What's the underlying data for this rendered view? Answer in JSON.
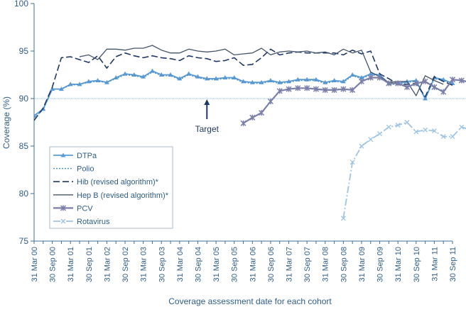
{
  "chart_data": {
    "type": "line",
    "xlabel": "Coverage assessment date for each cohort",
    "ylabel": "Coverage (%)",
    "ylim": [
      75,
      100
    ],
    "y_ticks": [
      "75",
      "80",
      "85",
      "90",
      "95",
      "100"
    ],
    "x_tick_labels": [
      "31 Mar 00",
      "30 Sep 00",
      "31 Mar 01",
      "30 Sep 01",
      "31 Mar 02",
      "30 Sep 02",
      "31 Mar 03",
      "30 Sep 03",
      "31 Mar 04",
      "30 Sep 04",
      "31 Mar 05",
      "30 Sep 05",
      "31 Mar 06",
      "30 Sep 06",
      "31 Mar 07",
      "30 Sep 07",
      "31 Mar 08",
      "30 Sep 08",
      "31 Mar 09",
      "30 Sep 09",
      "31 Mar 10",
      "30 Sep 10",
      "31 Mar 11",
      "30 Sep 11"
    ],
    "points_per_year": 4,
    "target": {
      "value": 90,
      "label": "Target"
    },
    "legend_position": "bottom-left",
    "colors": {
      "axis": "#3d6f97",
      "text": "#2f5d86",
      "DTPa": "#5b9bd5",
      "Polio": "#4a90c9",
      "Hib": "#1f3864",
      "HepB": "#44546a",
      "PCV": "#7a7fa8",
      "Rotavirus": "#9dc3e6",
      "target_line": "#8eb4e3"
    },
    "series": [
      {
        "name": "DTPa",
        "key": "DTPa",
        "marker": "triangle",
        "dash": "",
        "start_index": 0,
        "values": [
          88.2,
          88.9,
          91.0,
          91.0,
          91.5,
          91.5,
          91.8,
          91.9,
          91.7,
          92.2,
          92.6,
          92.5,
          92.3,
          92.9,
          92.5,
          92.5,
          92.1,
          92.6,
          92.3,
          92.1,
          92.1,
          92.2,
          92.2,
          91.8,
          91.7,
          91.7,
          91.9,
          91.7,
          91.8,
          92.0,
          92.0,
          92.0,
          91.7,
          91.9,
          91.8,
          92.5,
          92.2,
          92.6,
          92.5,
          91.6,
          91.6,
          91.8,
          91.9,
          90.0,
          92.2,
          92.0,
          91.6
        ]
      },
      {
        "name": "Polio",
        "key": "Polio",
        "marker": "none",
        "dash": "2,2",
        "start_index": 0,
        "values": [
          88.0,
          88.8,
          91.0,
          91.0,
          91.4,
          91.5,
          91.7,
          91.8,
          91.7,
          92.1,
          92.5,
          92.4,
          92.2,
          92.8,
          92.4,
          92.4,
          92.0,
          92.5,
          92.2,
          92.0,
          92.0,
          92.1,
          92.1,
          91.7,
          91.6,
          91.6,
          91.8,
          91.6,
          91.7,
          91.9,
          91.9,
          91.9,
          91.6,
          91.8,
          91.7,
          92.4,
          92.1,
          92.5,
          92.4,
          91.5,
          91.5,
          91.7,
          91.8,
          89.9,
          92.1,
          91.9,
          91.5
        ]
      },
      {
        "name": "Hib (revised algorithm)*",
        "key": "Hib",
        "marker": "none",
        "dash": "9,4",
        "start_index": 0,
        "values": [
          87.7,
          89.0,
          91.2,
          94.3,
          94.4,
          94.1,
          93.8,
          94.5,
          93.2,
          94.4,
          94.8,
          94.5,
          94.3,
          94.5,
          94.3,
          94.2,
          94.0,
          94.5,
          94.3,
          94.2,
          93.9,
          94.0,
          94.3,
          93.5,
          93.6,
          94.3,
          95.2,
          94.6,
          94.8,
          94.9,
          94.8,
          94.8,
          94.8,
          94.8,
          94.6,
          95.1,
          94.7,
          95.0,
          92.6,
          92.1,
          91.5,
          91.5,
          91.6,
          90.2,
          92.3,
          91.8,
          91.4
        ]
      },
      {
        "name": "Hep B (revised algorithm)*",
        "key": "HepB",
        "marker": "none",
        "dash": "",
        "start_index": 5,
        "values": [
          94.4,
          94.6,
          94.1,
          95.2,
          95.2,
          95.1,
          95.3,
          95.3,
          95.6,
          95.1,
          94.8,
          94.8,
          95.2,
          95.0,
          94.9,
          95.0,
          95.2,
          94.6,
          94.7,
          94.8,
          95.3,
          94.6,
          94.9,
          95.0,
          94.9,
          95.0,
          94.8,
          94.9,
          94.6,
          95.2,
          94.8,
          95.1,
          92.8,
          92.3,
          91.7,
          91.8,
          91.8,
          90.3,
          92.4,
          91.9,
          91.5
        ]
      },
      {
        "name": "PCV",
        "key": "PCV",
        "marker": "star",
        "dash": "",
        "start_index": 23,
        "values": [
          87.4,
          88.0,
          88.5,
          89.7,
          90.8,
          91.0,
          91.1,
          91.1,
          91.0,
          90.9,
          90.9,
          91.0,
          90.9,
          91.8,
          92.2,
          92.2,
          91.6,
          91.6,
          91.2,
          91.6,
          91.8,
          91.2,
          90.7,
          92.0,
          91.9,
          91.7
        ]
      },
      {
        "name": "Rotavirus",
        "key": "Rotavirus",
        "marker": "x",
        "dash": "10,3,2,3",
        "start_index": 34,
        "values": [
          77.4,
          83.3,
          85.0,
          85.7,
          86.3,
          87.0,
          87.2,
          87.5,
          86.5,
          86.7,
          86.6,
          86.0,
          86.0,
          87.0,
          86.7
        ]
      }
    ]
  }
}
